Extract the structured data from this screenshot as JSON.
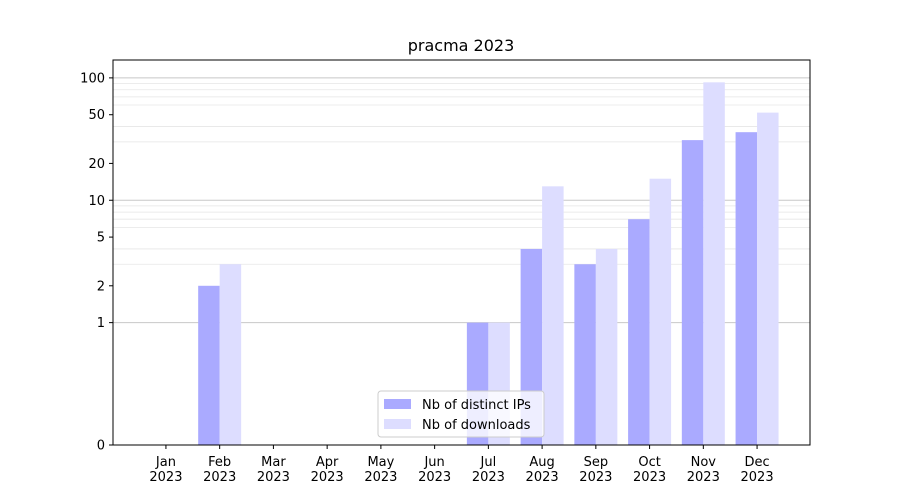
{
  "chart_data": {
    "type": "bar",
    "title": "pracma 2023",
    "xlabel": "",
    "ylabel": "",
    "yscale": "symlog",
    "ylim": [
      0,
      140
    ],
    "yticks": [
      0,
      1,
      2,
      5,
      10,
      20,
      50,
      100
    ],
    "ytick_labels": [
      "0",
      "1",
      "2",
      "5",
      "10",
      "20",
      "50",
      "100"
    ],
    "categories": [
      "Jan\n2023",
      "Feb\n2023",
      "Mar\n2023",
      "Apr\n2023",
      "May\n2023",
      "Jun\n2023",
      "Jul\n2023",
      "Aug\n2023",
      "Sep\n2023",
      "Oct\n2023",
      "Nov\n2023",
      "Dec\n2023"
    ],
    "series": [
      {
        "name": "Nb of distinct IPs",
        "color": "#aaaaff",
        "values": [
          0,
          2,
          0,
          0,
          0,
          0,
          1,
          4,
          3,
          7,
          31,
          36
        ]
      },
      {
        "name": "Nb of downloads",
        "color": "#ddddff",
        "values": [
          0,
          3,
          0,
          0,
          0,
          0,
          1,
          13,
          4,
          15,
          92,
          52
        ]
      }
    ],
    "legend_position": "lower center",
    "grid": true
  }
}
